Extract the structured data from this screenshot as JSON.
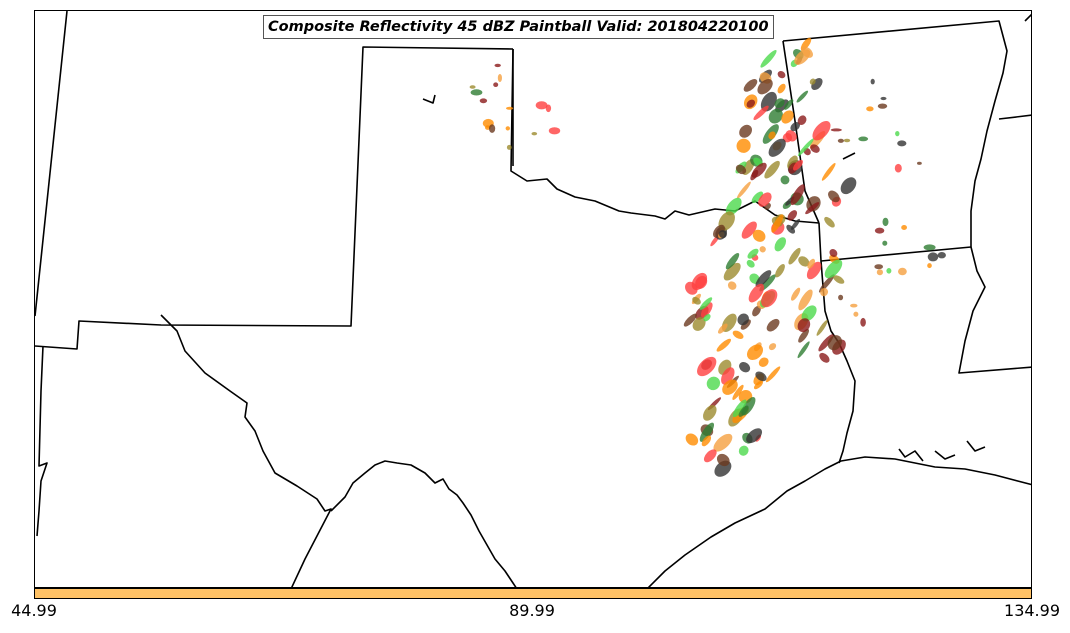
{
  "map": {
    "title": "Composite Reflectivity 45 dBZ Paintball Valid: 201804220100",
    "colorbar": {
      "color": "#ffc266",
      "ticks": [
        "44.99",
        "89.99",
        "134.99"
      ]
    },
    "paintball_colors": [
      "#ff4040",
      "#ff8c00",
      "#f5a040",
      "#2e7d32",
      "#4cd94c",
      "#8b1a1a",
      "#9c8b2e",
      "#333333",
      "#6b3a1f"
    ]
  }
}
